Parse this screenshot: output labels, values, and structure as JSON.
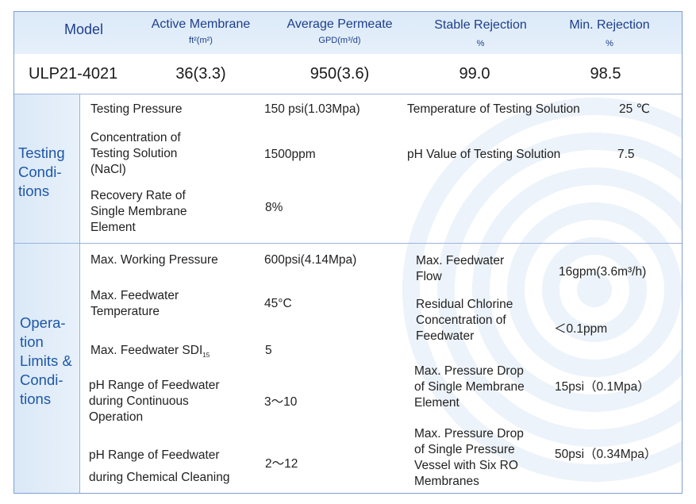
{
  "header": {
    "model": "Model",
    "active_membrane": "Active Membrane",
    "active_membrane_unit": "ft²(m²)",
    "average_permeate": "Average Permeate",
    "average_permeate_unit": "GPD(m³/d)",
    "stable_rejection": "Stable Rejection",
    "stable_rejection_unit": "%",
    "min_rejection": "Min. Rejection",
    "min_rejection_unit": "%"
  },
  "model_row": {
    "model": "ULP21-4021",
    "active_membrane": "36(3.3)",
    "average_permeate": "950(3.6)",
    "stable_rejection": "99.0",
    "min_rejection": "98.5"
  },
  "testing": {
    "label": [
      "Testing",
      "Condi-",
      "tions"
    ],
    "pressure_label": "Testing Pressure",
    "pressure_value": "150 psi(1.03Mpa)",
    "temperature_label": "Temperature of Testing Solution",
    "temperature_value": "25 ℃",
    "concentration_label": [
      "Concentration of",
      "Testing Solution",
      "(NaCl)"
    ],
    "concentration_value": "1500ppm",
    "ph_label": "pH Value of Testing Solution",
    "ph_value": "7.5",
    "recovery_label": [
      "Recovery Rate of",
      "Single Membrane",
      "Element"
    ],
    "recovery_value": "8%"
  },
  "operation": {
    "label": [
      "Opera-",
      "tion",
      "Limits &",
      "Condi-",
      "tions"
    ],
    "max_pressure_label": "Max. Working Pressure",
    "max_pressure_value": "600psi(4.14Mpa)",
    "max_temp_label": [
      "Max. Feedwater",
      "Temperature"
    ],
    "max_temp_value": "45°C",
    "sdi_label": "Max. Feedwater SDI",
    "sdi_sub": "15",
    "sdi_value": "5",
    "ph_cont_label": [
      "pH Range of Feedwater",
      "during Continuous",
      "Operation"
    ],
    "ph_cont_value": "3～10",
    "ph_clean_label": [
      "pH Range of Feedwater",
      "during Chemical Cleaning"
    ],
    "ph_clean_value": "2～12",
    "max_flow_label": [
      "Max. Feedwater",
      "Flow"
    ],
    "max_flow_value": "16gpm(3.6m³/h)",
    "chlorine_label": [
      "Residual Chlorine",
      "Concentration of",
      "Feedwater"
    ],
    "chlorine_value": "＜0.1ppm",
    "drop_element_label": [
      "Max. Pressure Drop",
      "of Single Membrane",
      "Element"
    ],
    "drop_element_value": "15psi（0.1Mpa）",
    "drop_vessel_label": [
      "Max. Pressure Drop",
      "of Single Pressure",
      "Vessel with Six RO",
      "Membranes"
    ],
    "drop_vessel_value": "50psi（0.34Mpa）"
  }
}
